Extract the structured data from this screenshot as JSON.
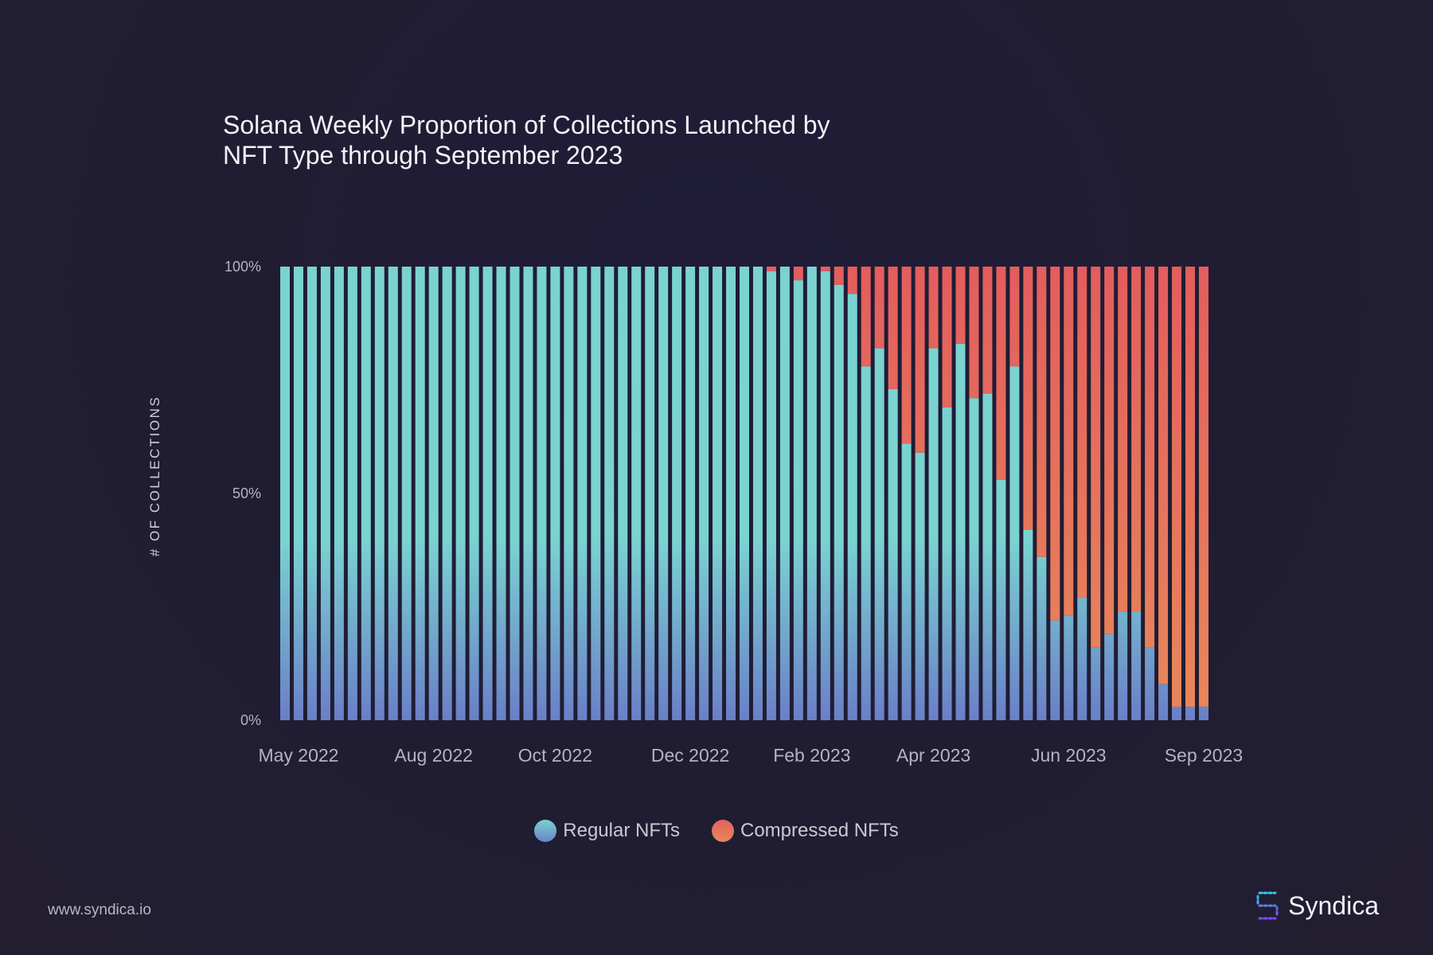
{
  "title_lines": [
    "Solana Weekly Proportion of Collections Launched by",
    "NFT Type through September 2023"
  ],
  "footer": {
    "url": "www.syndica.io",
    "brand": "Syndica"
  },
  "colors": {
    "regular_top": "#7ad3d1",
    "regular_bottom": "#6a7fc8",
    "compressed_top": "#e35d5d",
    "compressed_bottom": "#e8885a",
    "axis_text": "#b4b3c0"
  },
  "chart_data": {
    "type": "bar",
    "stacked": true,
    "percent": true,
    "ylabel": "# OF COLLECTIONS",
    "yticks": [
      "0%",
      "50%",
      "100%"
    ],
    "ylim": [
      0,
      100
    ],
    "xtick_labels": [
      "May 2022",
      "Aug 2022",
      "Oct 2022",
      "Dec 2022",
      "Feb 2023",
      "Apr 2023",
      "Jun 2023",
      "Sep 2023"
    ],
    "xtick_bar_index": [
      1,
      11,
      20,
      30,
      39,
      48,
      58,
      68
    ],
    "legend": [
      "Regular NFTs",
      "Compressed NFTs"
    ],
    "legend_position": "bottom-center",
    "series": [
      {
        "name": "Regular NFTs",
        "values": [
          100,
          100,
          100,
          100,
          100,
          100,
          100,
          100,
          100,
          100,
          100,
          100,
          100,
          100,
          100,
          100,
          100,
          100,
          100,
          100,
          100,
          100,
          100,
          100,
          100,
          100,
          100,
          100,
          100,
          100,
          100,
          100,
          100,
          100,
          100,
          100,
          99,
          100,
          97,
          100,
          99,
          96,
          94,
          78,
          82,
          73,
          61,
          59,
          82,
          69,
          83,
          71,
          72,
          53,
          78,
          42,
          36,
          22,
          23,
          27,
          16,
          19,
          24,
          24,
          16,
          8,
          3,
          3,
          3
        ]
      },
      {
        "name": "Compressed NFTs",
        "values": [
          0,
          0,
          0,
          0,
          0,
          0,
          0,
          0,
          0,
          0,
          0,
          0,
          0,
          0,
          0,
          0,
          0,
          0,
          0,
          0,
          0,
          0,
          0,
          0,
          0,
          0,
          0,
          0,
          0,
          0,
          0,
          0,
          0,
          0,
          0,
          0,
          1,
          0,
          3,
          0,
          1,
          4,
          6,
          22,
          18,
          27,
          39,
          41,
          18,
          31,
          17,
          29,
          28,
          47,
          22,
          58,
          64,
          78,
          77,
          73,
          84,
          81,
          76,
          76,
          84,
          92,
          97,
          97,
          97
        ]
      }
    ]
  }
}
